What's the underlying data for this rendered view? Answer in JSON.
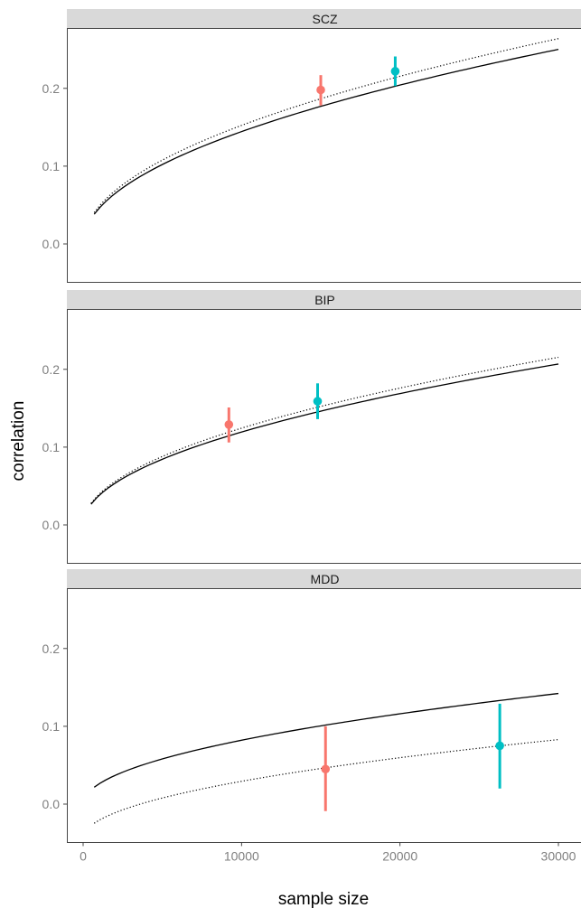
{
  "chart_data": {
    "type": "scatter",
    "xlabel": "sample size",
    "ylabel": "correlation",
    "xlim": [
      -500,
      30700
    ],
    "ylim": [
      -0.052,
      0.276
    ],
    "x_ticks": [
      0,
      10000,
      20000,
      30000
    ],
    "x_tick_labels": [
      "0",
      "10000",
      "20000",
      "30000"
    ],
    "y_ticks": [
      0.0,
      0.1,
      0.2
    ],
    "y_tick_labels": [
      "0.0",
      "0.1",
      "0.2"
    ],
    "grid": false,
    "colors": {
      "red": "#F8766D",
      "teal": "#00BFC4",
      "line": "#000000",
      "strip": "#d9d9d9"
    },
    "panels": [
      {
        "name": "SCZ",
        "solid_line": {
          "x_start": 700,
          "x_end": 30000,
          "coef": 0.001444
        },
        "dotted_line": {
          "x_start": 700,
          "x_end": 30000,
          "coef": 0.001524
        },
        "points": [
          {
            "color": "red",
            "x": 15000,
            "y": 0.198,
            "low": 0.178,
            "high": 0.217
          },
          {
            "color": "teal",
            "x": 19700,
            "y": 0.222,
            "low": 0.203,
            "high": 0.241
          }
        ]
      },
      {
        "name": "BIP",
        "solid_line": {
          "x_start": 500,
          "x_end": 30000,
          "coef": 0.001194
        },
        "dotted_line": {
          "x_start": 500,
          "x_end": 30000,
          "coef": 0.001244
        },
        "points": [
          {
            "color": "red",
            "x": 9200,
            "y": 0.129,
            "low": 0.106,
            "high": 0.151
          },
          {
            "color": "teal",
            "x": 14800,
            "y": 0.159,
            "low": 0.136,
            "high": 0.182
          }
        ]
      },
      {
        "name": "MDD",
        "solid_line": {
          "x_start": 700,
          "x_end": 30000,
          "coef": 0.000821
        },
        "dotted_line": {
          "x_start": 700,
          "x_end": 30000,
          "coef": 0.000733,
          "offset": -0.044
        },
        "points": [
          {
            "color": "red",
            "x": 15300,
            "y": 0.045,
            "low": -0.009,
            "high": 0.1
          },
          {
            "color": "teal",
            "x": 26300,
            "y": 0.075,
            "low": 0.02,
            "high": 0.129
          }
        ]
      }
    ]
  }
}
